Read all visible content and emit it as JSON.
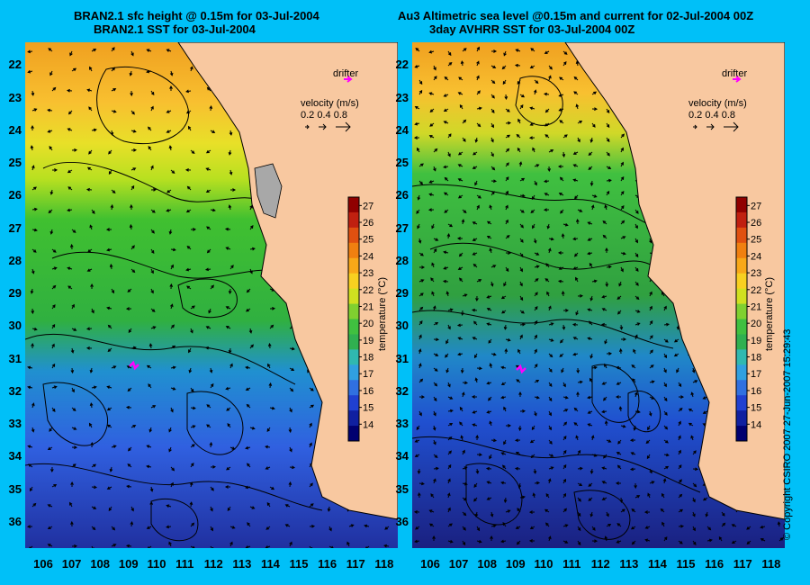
{
  "titles": {
    "left_line1": "BRAN2.1 sfc height @ 0.15m for 03-Jul-2004",
    "left_line2": "BRAN2.1 SST for 03-Jul-2004",
    "right_line1": "Au3 Altimetric sea level  @0.15m and current for 02-Jul-2004 00Z",
    "right_line2": "3day AVHRR SST for 03-Jul-2004 00Z"
  },
  "map": {
    "lon_range": [
      105.3,
      118.4
    ],
    "lat_range": [
      21.3,
      36.8
    ],
    "lon_ticks": [
      "106",
      "107",
      "108",
      "109",
      "110",
      "111",
      "112",
      "113",
      "114",
      "115",
      "116",
      "117",
      "118"
    ],
    "lat_ticks": [
      "22",
      "23",
      "24",
      "25",
      "26",
      "27",
      "28",
      "29",
      "30",
      "31",
      "32",
      "33",
      "34",
      "35",
      "36"
    ]
  },
  "legend": {
    "drifter_label": "drifter",
    "velocity_label": "velocity (m/s)",
    "velocity_values": "0.2 0.4 0.8"
  },
  "colorbar": {
    "label": "temperature (°C)",
    "ticks": [
      "14",
      "15",
      "16",
      "17",
      "18",
      "19",
      "20",
      "21",
      "22",
      "23",
      "24",
      "25",
      "26",
      "27"
    ],
    "range": [
      13,
      27.5
    ]
  },
  "colors": {
    "background": "#00c0f8",
    "land": "#f8c8a0",
    "drifter": "#ff00ff"
  },
  "copyright": "© Copyright CSIRO 2007   27-Jun-2007 15:29:43"
}
